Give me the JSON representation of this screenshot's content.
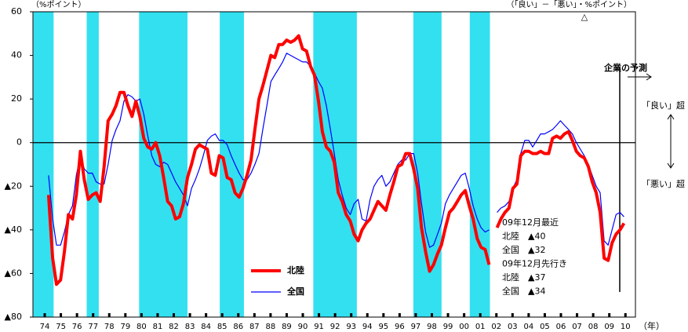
{
  "chart_data": {
    "type": "line",
    "annotations": {
      "y_unit": "（%ポイント）",
      "right_unit": "（「良い」－「悪い」・%ポイント）",
      "triangle": "△",
      "forecast": "企業の予測",
      "good": "「良い」超",
      "bad": "「悪い」超",
      "x_unit": "（年）",
      "box": [
        "09年12月最近",
        "北陸　▲40",
        "全国　▲32",
        "09年12月先行き",
        "北陸　▲37",
        "全国　▲34"
      ]
    },
    "xlim": [
      1973.77,
      2011.12
    ],
    "ylim": [
      -80,
      60
    ],
    "yticks": [
      {
        "value": -80,
        "label": "▲80"
      },
      {
        "value": -60,
        "label": "▲60"
      },
      {
        "value": -40,
        "label": "▲40"
      },
      {
        "value": -20,
        "label": "▲20"
      },
      0,
      20,
      40,
      60
    ],
    "xticks": [
      {
        "value": 1974.5,
        "label": "74"
      },
      {
        "value": 1975.5,
        "label": "75"
      },
      {
        "value": 1976.5,
        "label": "76"
      },
      {
        "value": 1977.5,
        "label": "77"
      },
      {
        "value": 1978.5,
        "label": "78"
      },
      {
        "value": 1979.5,
        "label": "79"
      },
      {
        "value": 1980.5,
        "label": "80"
      },
      {
        "value": 1981.5,
        "label": "81"
      },
      {
        "value": 1982.5,
        "label": "82"
      },
      {
        "value": 1983.5,
        "label": "83"
      },
      {
        "value": 1984.5,
        "label": "84"
      },
      {
        "value": 1985.5,
        "label": "85"
      },
      {
        "value": 1986.5,
        "label": "86"
      },
      {
        "value": 1987.5,
        "label": "87"
      },
      {
        "value": 1988.5,
        "label": "88"
      },
      {
        "value": 1989.5,
        "label": "89"
      },
      {
        "value": 1990.5,
        "label": "90"
      },
      {
        "value": 1991.5,
        "label": "91"
      },
      {
        "value": 1992.5,
        "label": "92"
      },
      {
        "value": 1993.5,
        "label": "93"
      },
      {
        "value": 1994.5,
        "label": "94"
      },
      {
        "value": 1995.5,
        "label": "95"
      },
      {
        "value": 1996.5,
        "label": "96"
      },
      {
        "value": 1997.5,
        "label": "97"
      },
      {
        "value": 1998.5,
        "label": "98"
      },
      {
        "value": 1999.5,
        "label": "99"
      },
      {
        "value": 2000.5,
        "label": "00"
      },
      {
        "value": 2001.5,
        "label": "01"
      },
      {
        "value": 2002.5,
        "label": "02"
      },
      {
        "value": 2003.5,
        "label": "03"
      },
      {
        "value": 2004.5,
        "label": "04"
      },
      {
        "value": 2005.5,
        "label": "05"
      },
      {
        "value": 2006.5,
        "label": "06"
      },
      {
        "value": 2007.5,
        "label": "07"
      },
      {
        "value": 2008.5,
        "label": "08"
      },
      {
        "value": 2009.5,
        "label": "09"
      },
      {
        "value": 2010.5,
        "label": "10"
      }
    ],
    "shaded_periods": [
      [
        1973.8,
        1975.05
      ],
      [
        1977.1,
        1977.85
      ],
      [
        1980.35,
        1983.35
      ],
      [
        1985.35,
        1986.85
      ],
      [
        1991.15,
        1993.85
      ],
      [
        1997.35,
        1999.1
      ],
      [
        2000.85,
        2002.1
      ]
    ],
    "shade_color": "#33e0f0",
    "x": [
      1974.74,
      1974.99,
      1975.23,
      1975.48,
      1975.72,
      1975.97,
      1976.22,
      1976.46,
      1976.71,
      1976.95,
      1977.2,
      1977.45,
      1977.69,
      1977.94,
      1978.18,
      1978.43,
      1978.68,
      1978.92,
      1979.17,
      1979.41,
      1979.66,
      1979.91,
      1980.15,
      1980.4,
      1980.64,
      1980.89,
      1981.14,
      1981.38,
      1981.63,
      1981.87,
      1982.12,
      1982.37,
      1982.61,
      1982.86,
      1983.1,
      1983.35,
      1983.6,
      1983.84,
      1984.09,
      1984.33,
      1984.58,
      1984.83,
      1985.07,
      1985.32,
      1985.56,
      1985.81,
      1986.06,
      1986.3,
      1986.55,
      1986.79,
      1987.04,
      1987.29,
      1987.53,
      1987.78,
      1988.02,
      1988.27,
      1988.52,
      1988.76,
      1989.01,
      1989.25,
      1989.5,
      1989.75,
      1989.99,
      1990.24,
      1990.48,
      1990.73,
      1990.98,
      1991.22,
      1991.47,
      1991.71,
      1991.96,
      1992.21,
      1992.45,
      1992.7,
      1992.94,
      1993.19,
      1993.44,
      1993.68,
      1993.93,
      1994.17,
      1994.42,
      1994.67,
      1994.91,
      1995.16,
      1995.4,
      1995.65,
      1995.9,
      1996.14,
      1996.39,
      1996.63,
      1996.88,
      1997.13,
      1997.37,
      1997.62,
      1997.86,
      1998.11,
      1998.36,
      1998.6,
      1998.85,
      1999.09,
      1999.34,
      1999.59,
      1999.83,
      2000.08,
      2000.32,
      2000.57,
      2000.82,
      2001.06,
      2001.31,
      2001.55,
      2001.8,
      2002.05,
      2002.29,
      2002.54,
      2002.78,
      2003.03,
      2003.28,
      2003.52,
      2003.77,
      2004.01,
      2004.26,
      2004.51,
      2004.75,
      2005.0,
      2005.24,
      2005.49,
      2005.74,
      2005.98,
      2006.23,
      2006.47,
      2006.72,
      2006.97,
      2007.21,
      2007.46,
      2007.7,
      2007.95,
      2008.2,
      2008.44,
      2008.69,
      2008.93,
      2009.18,
      2009.43,
      2009.67,
      2009.92,
      2010.16,
      2010.41
    ],
    "series": [
      {
        "name": "北陸",
        "color": "#ff0000",
        "width": 4,
        "values": [
          -24,
          -53,
          -65,
          -63,
          -50,
          -33,
          -35,
          -24,
          -4,
          -17,
          -26,
          -24,
          -23,
          -27,
          -11,
          10,
          13,
          17,
          23,
          23,
          17,
          12,
          19,
          12,
          2,
          -2,
          -3,
          0,
          -6,
          -16,
          -27,
          -29,
          -35,
          -34,
          -28,
          -16,
          -10,
          -3,
          -1,
          -2,
          -3,
          -14,
          -15,
          -6,
          -7,
          -16,
          -17,
          -23,
          -25,
          -21,
          -15,
          -8,
          6,
          20,
          26,
          33,
          40,
          39,
          45,
          45,
          47,
          46,
          47,
          49,
          43,
          42,
          35,
          31,
          19,
          5,
          -2,
          -4,
          -9,
          -23,
          -27,
          -33,
          -36,
          -42,
          -45,
          -40,
          -37,
          -35,
          -31,
          -27,
          -29,
          -31,
          -24,
          -18,
          -11,
          -10,
          -5,
          -5,
          -12,
          -21,
          -39,
          -50,
          -59,
          -56,
          -51,
          -47,
          -39,
          -32,
          -30,
          -27,
          -24,
          -22,
          -29,
          -35,
          -44,
          -48,
          -49,
          -56,
          null,
          -39,
          -35,
          -32,
          -30,
          -21,
          -19,
          -6,
          -4,
          -4,
          -5,
          -5,
          -4,
          -5,
          -5,
          2,
          3,
          2,
          4,
          5,
          1,
          -4,
          -6,
          -7,
          -11,
          -18,
          -23,
          -32,
          -53,
          -54,
          -46,
          -42,
          -40,
          -37
        ]
      },
      {
        "name": "全国",
        "color": "#0000ff",
        "width": 1.2,
        "values": [
          -15,
          -35,
          -47,
          -47,
          -41,
          -33,
          -29,
          -15,
          -6,
          -12,
          -14,
          -14,
          -18,
          -19,
          -19,
          -10,
          1,
          6,
          10,
          19,
          22,
          21,
          19,
          20,
          13,
          3,
          -6,
          -10,
          -11,
          -9,
          -10,
          -14,
          -18,
          -21,
          -24,
          -29,
          -21,
          -17,
          -12,
          -6,
          1,
          3,
          4,
          1,
          1,
          -1,
          -6,
          -10,
          -14,
          -17,
          -17,
          -14,
          -10,
          -5,
          6,
          17,
          28,
          31,
          34,
          37,
          41,
          40,
          39,
          38,
          37,
          37,
          35,
          32,
          28,
          25,
          17,
          6,
          -5,
          -17,
          -24,
          -30,
          -33,
          -28,
          -26,
          -35,
          -36,
          -26,
          -20,
          -17,
          -15,
          -20,
          -18,
          -14,
          -10,
          -8,
          -8,
          -5,
          -5,
          -14,
          -28,
          -41,
          -48,
          -47,
          -42,
          -37,
          -28,
          -24,
          -21,
          -18,
          -15,
          -14,
          -21,
          -29,
          -35,
          -39,
          -41,
          -40,
          null,
          -32,
          -30,
          -29,
          -27,
          -21,
          -17,
          -5,
          1,
          1,
          -2,
          1,
          4,
          4,
          5,
          6,
          8,
          10,
          8,
          6,
          4,
          0,
          -3,
          -6,
          -10,
          -15,
          -20,
          -23,
          -45,
          -47,
          -40,
          -33,
          -32,
          -34
        ]
      }
    ]
  }
}
